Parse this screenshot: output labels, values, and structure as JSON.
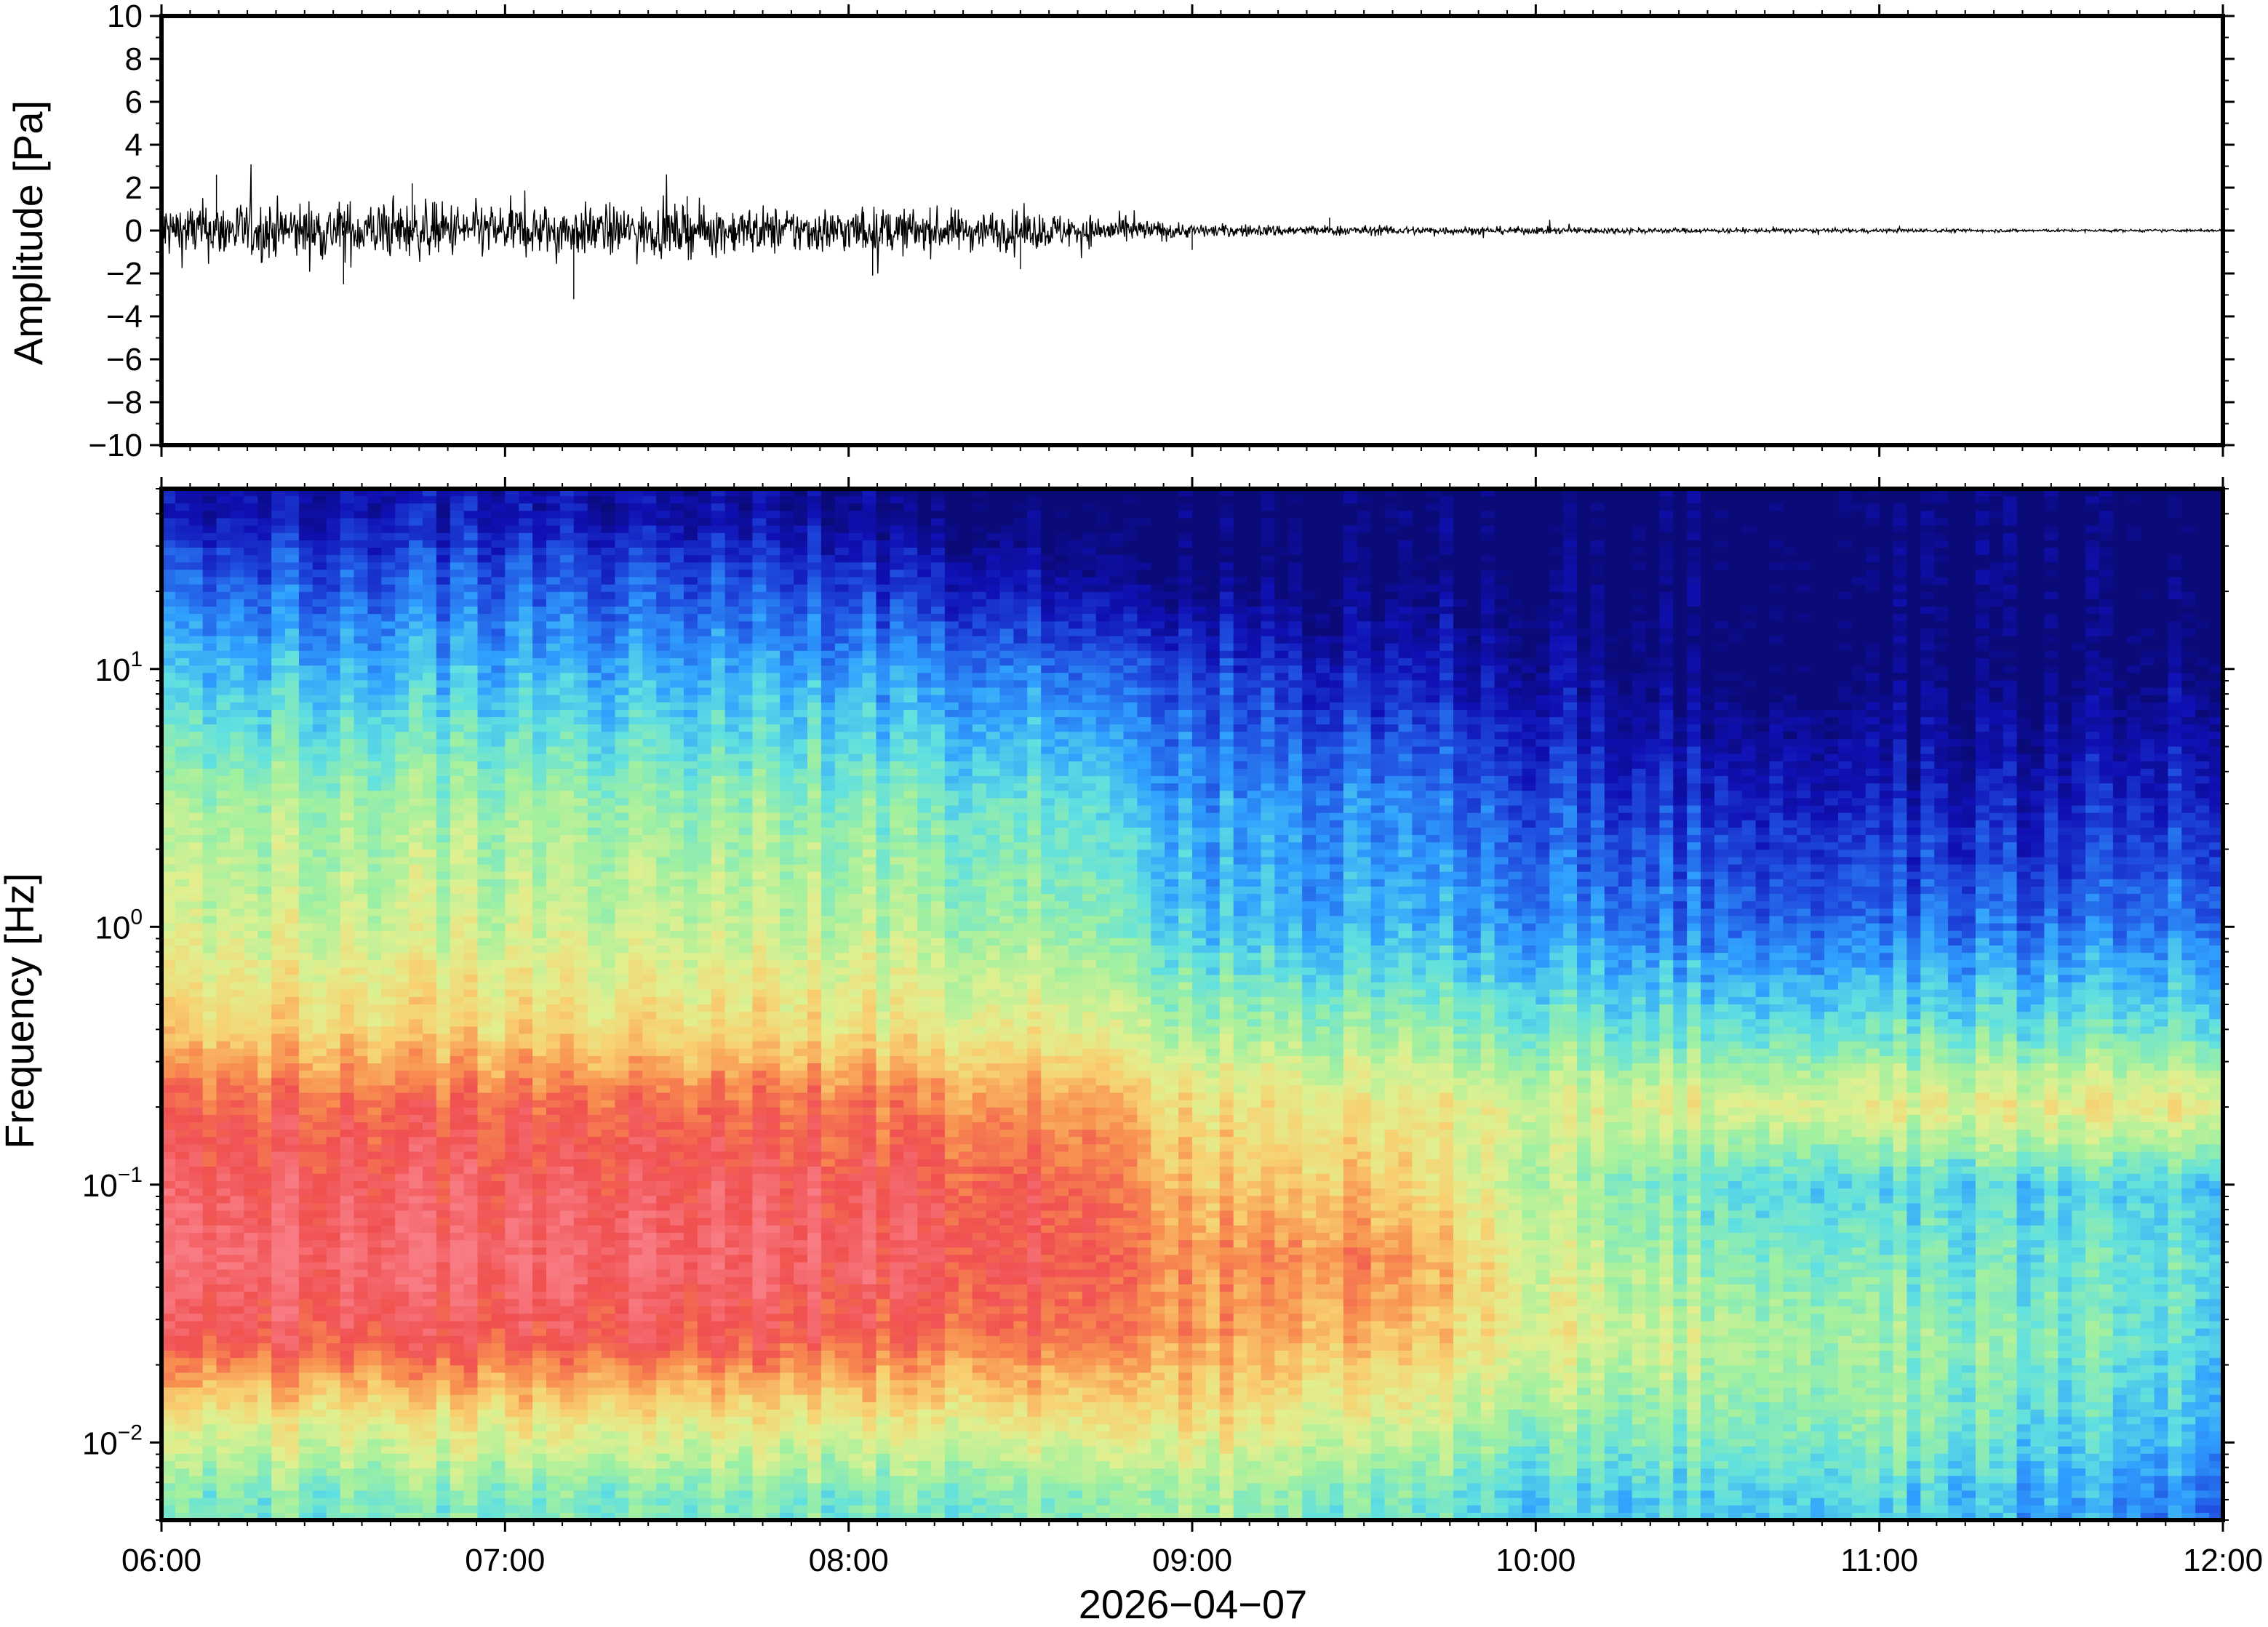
{
  "chart_data": [
    {
      "type": "line",
      "panel": "waveform",
      "ylabel": "Amplitude [Pa]",
      "ylim": [
        -10,
        10
      ],
      "yticks": [
        10,
        8,
        6,
        4,
        2,
        0,
        -2,
        -4,
        -6,
        -8,
        -10
      ],
      "ytick_labels": [
        "10",
        "8",
        "6",
        "4",
        "2",
        "0",
        "−2",
        "−4",
        "−6",
        "−8",
        "−10"
      ],
      "xlim": [
        "06:00",
        "12:00"
      ],
      "series": [
        {
          "envelope": {
            "hours_since_06": [
              0.0,
              0.5,
              1.0,
              1.5,
              2.0,
              2.5,
              2.75,
              3.0,
              3.5,
              4.0,
              4.5,
              5.0,
              5.5,
              6.0
            ],
            "amplitude_pa": [
              1.2,
              1.2,
              1.1,
              1.0,
              0.95,
              0.8,
              0.6,
              0.28,
              0.2,
              0.15,
              0.1,
              0.08,
              0.06,
              0.05
            ]
          },
          "spikes": [
            {
              "hours_since_06": 0.16,
              "value": 2.6
            },
            {
              "hours_since_06": 0.53,
              "value": -2.5
            },
            {
              "hours_since_06": 0.73,
              "value": 2.2
            },
            {
              "hours_since_06": 1.2,
              "value": -3.2
            },
            {
              "hours_since_06": 1.53,
              "value": 1.6
            },
            {
              "hours_since_06": 2.07,
              "value": -2.1
            },
            {
              "hours_since_06": 2.5,
              "value": -1.8
            },
            {
              "hours_since_06": 3.0,
              "value": -0.9
            },
            {
              "hours_since_06": 3.4,
              "value": 0.6
            }
          ]
        }
      ]
    },
    {
      "type": "heatmap",
      "panel": "spectrogram",
      "ylabel": "Frequency [Hz]",
      "xlabel": "2026−04−07",
      "yscale": "log",
      "ylim": [
        0.005,
        50
      ],
      "yticks": [
        {
          "base": "10",
          "exp": "1",
          "value": 10
        },
        {
          "base": "10",
          "exp": "0",
          "value": 1
        },
        {
          "base": "10",
          "exp": "−1",
          "value": 0.1
        },
        {
          "base": "10",
          "exp": "−2",
          "value": 0.01
        }
      ],
      "xticks": [
        "06:00",
        "07:00",
        "08:00",
        "09:00",
        "10:00",
        "11:00",
        "12:00"
      ],
      "colormap": "rainbow (navy #0a0a78 = low power, red #f0504f = high power)",
      "colormap_stops": [
        "#0a0a78",
        "#1010b4",
        "#2050e0",
        "#30a0ff",
        "#60e0e0",
        "#a0f0a0",
        "#e0f090",
        "#f8d070",
        "#f89050",
        "#f05050",
        "#f87a82"
      ],
      "power_profile_hours_since_06": [
        0.0,
        1.0,
        2.0,
        2.7,
        3.0,
        3.5,
        4.0,
        4.5,
        5.0,
        5.5,
        6.0
      ],
      "power_profile_points": [
        {
          "freq_hz": 40,
          "values": [
            0.1,
            0.1,
            0.05,
            0.0,
            0.0,
            0.0,
            0.0,
            0.0,
            0.0,
            0.0,
            0.0
          ]
        },
        {
          "freq_hz": 25,
          "values": [
            0.2,
            0.2,
            0.15,
            0.05,
            0.0,
            0.0,
            0.0,
            0.0,
            0.0,
            0.0,
            0.0
          ]
        },
        {
          "freq_hz": 10,
          "values": [
            0.35,
            0.33,
            0.3,
            0.25,
            0.18,
            0.12,
            0.08,
            0.0,
            0.0,
            0.0,
            0.05
          ]
        },
        {
          "freq_hz": 3,
          "values": [
            0.52,
            0.5,
            0.47,
            0.42,
            0.3,
            0.28,
            0.2,
            0.15,
            0.12,
            0.12,
            0.16
          ]
        },
        {
          "freq_hz": 1,
          "values": [
            0.58,
            0.57,
            0.55,
            0.5,
            0.36,
            0.33,
            0.3,
            0.25,
            0.24,
            0.24,
            0.27
          ]
        },
        {
          "freq_hz": 0.4,
          "values": [
            0.7,
            0.68,
            0.66,
            0.62,
            0.52,
            0.5,
            0.45,
            0.42,
            0.42,
            0.42,
            0.43
          ]
        },
        {
          "freq_hz": 0.2,
          "values": [
            0.88,
            0.87,
            0.85,
            0.8,
            0.66,
            0.64,
            0.6,
            0.6,
            0.62,
            0.63,
            0.65
          ]
        },
        {
          "freq_hz": 0.1,
          "values": [
            0.94,
            0.93,
            0.92,
            0.88,
            0.72,
            0.72,
            0.55,
            0.42,
            0.38,
            0.38,
            0.38
          ]
        },
        {
          "freq_hz": 0.05,
          "values": [
            0.98,
            0.97,
            0.95,
            0.9,
            0.8,
            0.82,
            0.6,
            0.48,
            0.45,
            0.42,
            0.42
          ]
        },
        {
          "freq_hz": 0.025,
          "values": [
            0.9,
            0.9,
            0.88,
            0.85,
            0.78,
            0.74,
            0.62,
            0.55,
            0.5,
            0.45,
            0.4
          ]
        },
        {
          "freq_hz": 0.012,
          "values": [
            0.62,
            0.64,
            0.62,
            0.65,
            0.66,
            0.6,
            0.5,
            0.48,
            0.48,
            0.4,
            0.35
          ]
        },
        {
          "freq_hz": 0.006,
          "values": [
            0.45,
            0.45,
            0.45,
            0.48,
            0.52,
            0.45,
            0.38,
            0.38,
            0.38,
            0.32,
            0.26
          ]
        }
      ],
      "grid": false
    }
  ]
}
